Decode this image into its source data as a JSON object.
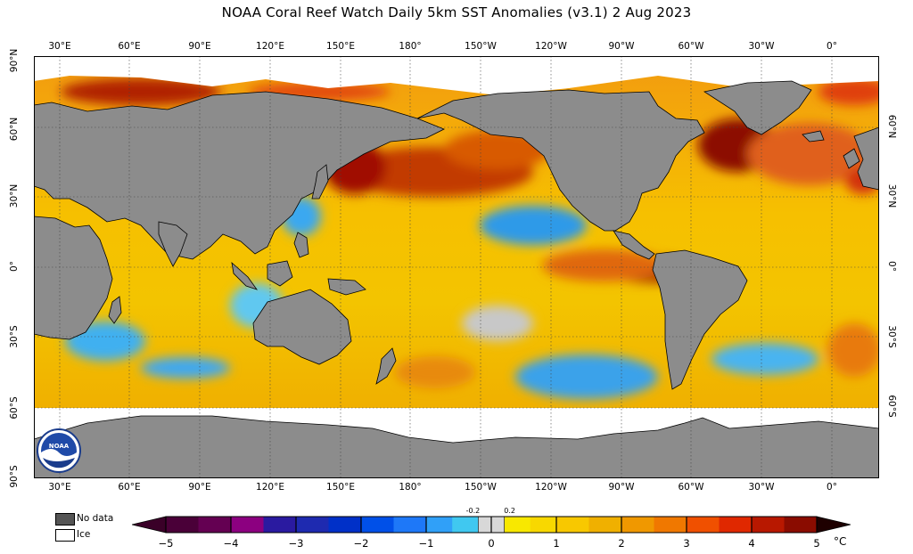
{
  "title": "NOAA Coral Reef Watch Daily 5km SST Anomalies  (v3.1)   2 Aug 2023",
  "longitude_labels": [
    "30°E",
    "60°E",
    "90°E",
    "120°E",
    "150°E",
    "180°",
    "150°W",
    "120°W",
    "90°W",
    "60°W",
    "30°W",
    "0°"
  ],
  "latitude_labels_left": [
    "90°N",
    "60°N",
    "30°N",
    "0°",
    "30°S",
    "60°S",
    "90°S"
  ],
  "latitude_labels_right": [
    "60°N",
    "30°N",
    "0°",
    "30°S",
    "60°S"
  ],
  "legend": {
    "no_data": "No data",
    "ice": "Ice"
  },
  "colorbar": {
    "ticks": [
      "−5",
      "−4",
      "−3",
      "−2",
      "−1",
      "0",
      "1",
      "2",
      "3",
      "4",
      "5"
    ],
    "fine_ticks": [
      "-0.2",
      "0.2"
    ],
    "unit": "°C",
    "range": [
      -5,
      5
    ]
  },
  "colors": {
    "land": "#8c8c8c",
    "ice": "#ffffff",
    "no_data": "#555555",
    "anomaly_warm": "#f2a200",
    "anomaly_hot": "#c01800",
    "anomaly_cold": "#28a8f0"
  },
  "logo_text": "NOAA"
}
